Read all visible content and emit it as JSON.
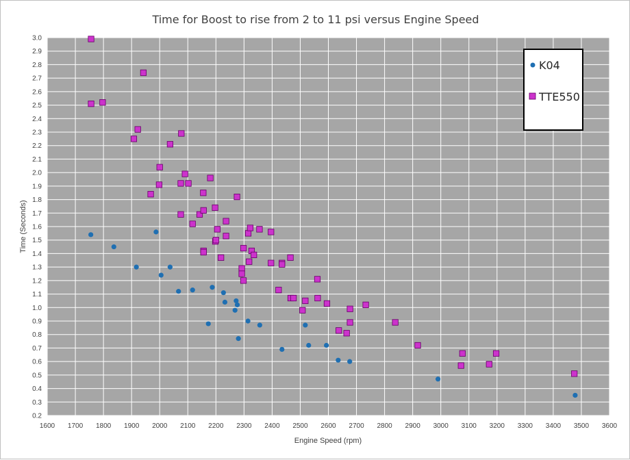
{
  "chart_data": {
    "type": "scatter",
    "title": "Time for Boost to rise from 2 to 11 psi versus Engine Speed",
    "xlabel": "Engine Speed (rpm)",
    "ylabel": "Time (Seconds)",
    "xlim": [
      1600,
      3600
    ],
    "ylim": [
      0.2,
      3.0
    ],
    "x_ticks": [
      "1600",
      "1700",
      "1800",
      "1900",
      "2000",
      "2100",
      "2200",
      "2300",
      "2400",
      "2500",
      "2600",
      "2700",
      "2800",
      "2900",
      "3000",
      "3100",
      "3200",
      "3300",
      "3400",
      "3500",
      "3600"
    ],
    "y_ticks": [
      "0.2",
      "0.3",
      "0.4",
      "0.5",
      "0.6",
      "0.7",
      "0.8",
      "0.9",
      "1.0",
      "1.1",
      "1.2",
      "1.3",
      "1.4",
      "1.5",
      "1.6",
      "1.7",
      "1.8",
      "1.9",
      "2.0",
      "2.1",
      "2.2",
      "2.3",
      "2.4",
      "2.5",
      "2.6",
      "2.7",
      "2.8",
      "2.9",
      "3.0"
    ],
    "grid": true,
    "plot_background": "#a6a6a6",
    "gridline_color": "#ffffff",
    "legend_position": "top-right",
    "series": [
      {
        "name": "K04",
        "marker": "circle",
        "color": "#1f6fb2",
        "points": [
          [
            1755,
            1.54
          ],
          [
            1837,
            1.45
          ],
          [
            1917,
            1.3
          ],
          [
            1987,
            1.56
          ],
          [
            2005,
            1.24
          ],
          [
            2037,
            1.3
          ],
          [
            2067,
            1.12
          ],
          [
            2117,
            1.13
          ],
          [
            2173,
            0.88
          ],
          [
            2187,
            1.15
          ],
          [
            2227,
            1.11
          ],
          [
            2232,
            1.04
          ],
          [
            2268,
            0.98
          ],
          [
            2272,
            1.05
          ],
          [
            2276,
            1.02
          ],
          [
            2280,
            0.77
          ],
          [
            2314,
            0.9
          ],
          [
            2356,
            0.87
          ],
          [
            2435,
            0.69
          ],
          [
            2518,
            0.87
          ],
          [
            2530,
            0.72
          ],
          [
            2593,
            0.72
          ],
          [
            2635,
            0.61
          ],
          [
            2676,
            0.6
          ],
          [
            2990,
            0.47
          ],
          [
            3478,
            0.35
          ]
        ]
      },
      {
        "name": "TTE550",
        "marker": "square",
        "color": "#cc33cc",
        "points": [
          [
            1756,
            2.99
          ],
          [
            1756,
            2.51
          ],
          [
            1797,
            2.52
          ],
          [
            1908,
            2.25
          ],
          [
            1922,
            2.32
          ],
          [
            1942,
            2.74
          ],
          [
            1968,
            1.84
          ],
          [
            1998,
            1.91
          ],
          [
            2000,
            2.04
          ],
          [
            2037,
            2.21
          ],
          [
            2075,
            1.92
          ],
          [
            2075,
            1.69
          ],
          [
            2077,
            2.29
          ],
          [
            2090,
            1.99
          ],
          [
            2102,
            1.92
          ],
          [
            2117,
            1.62
          ],
          [
            2142,
            1.69
          ],
          [
            2155,
            1.85
          ],
          [
            2156,
            1.72
          ],
          [
            2156,
            1.42
          ],
          [
            2156,
            1.41
          ],
          [
            2180,
            1.96
          ],
          [
            2197,
            1.74
          ],
          [
            2198,
            1.49
          ],
          [
            2200,
            1.5
          ],
          [
            2205,
            1.58
          ],
          [
            2218,
            1.37
          ],
          [
            2236,
            1.64
          ],
          [
            2236,
            1.53
          ],
          [
            2275,
            1.82
          ],
          [
            2292,
            1.29
          ],
          [
            2292,
            1.25
          ],
          [
            2298,
            1.2
          ],
          [
            2298,
            1.44
          ],
          [
            2315,
            1.55
          ],
          [
            2318,
            1.34
          ],
          [
            2322,
            1.59
          ],
          [
            2327,
            1.42
          ],
          [
            2335,
            1.39
          ],
          [
            2355,
            1.58
          ],
          [
            2396,
            1.56
          ],
          [
            2396,
            1.33
          ],
          [
            2423,
            1.13
          ],
          [
            2435,
            1.33
          ],
          [
            2435,
            1.32
          ],
          [
            2465,
            1.37
          ],
          [
            2466,
            1.07
          ],
          [
            2476,
            1.07
          ],
          [
            2508,
            0.98
          ],
          [
            2518,
            1.05
          ],
          [
            2561,
            1.21
          ],
          [
            2562,
            1.07
          ],
          [
            2595,
            1.03
          ],
          [
            2637,
            0.83
          ],
          [
            2665,
            0.81
          ],
          [
            2677,
            0.99
          ],
          [
            2677,
            0.89
          ],
          [
            2733,
            1.02
          ],
          [
            2838,
            0.89
          ],
          [
            2918,
            0.72
          ],
          [
            3072,
            0.57
          ],
          [
            3077,
            0.66
          ],
          [
            3172,
            0.58
          ],
          [
            3197,
            0.66
          ],
          [
            3475,
            0.51
          ]
        ]
      }
    ]
  }
}
